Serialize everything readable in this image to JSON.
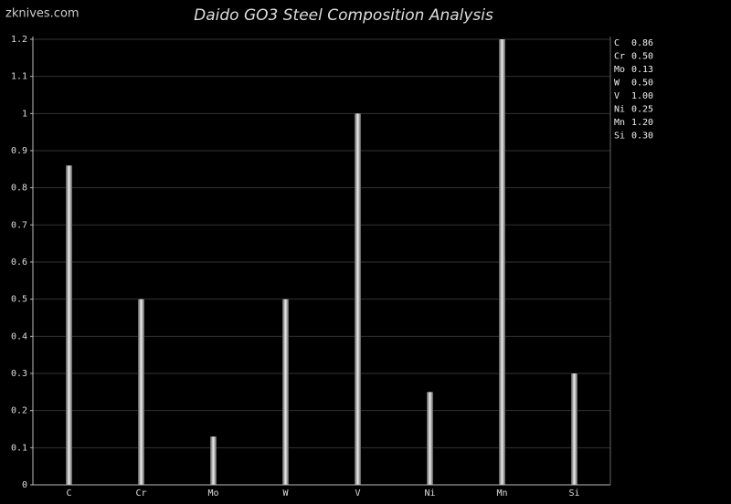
{
  "watermark": "zknives.com",
  "chart_data": {
    "type": "bar",
    "title": "Daido GO3 Steel Composition Analysis",
    "categories": [
      "C",
      "Cr",
      "Mo",
      "W",
      "V",
      "Ni",
      "Mn",
      "Si"
    ],
    "values": [
      0.86,
      0.5,
      0.13,
      0.5,
      1.0,
      0.25,
      1.2,
      0.3
    ],
    "value_labels": [
      "0.86",
      "0.50",
      "0.13",
      "0.50",
      "1.00",
      "0.25",
      "1.20",
      "0.30"
    ],
    "color": "#aaaaaa",
    "ylim": [
      0,
      1.2
    ],
    "yticks": [
      0,
      0.1,
      0.2,
      0.3,
      0.4,
      0.5,
      0.6,
      0.7,
      0.8,
      0.9,
      1,
      1.1,
      1.2
    ],
    "grid": true
  }
}
